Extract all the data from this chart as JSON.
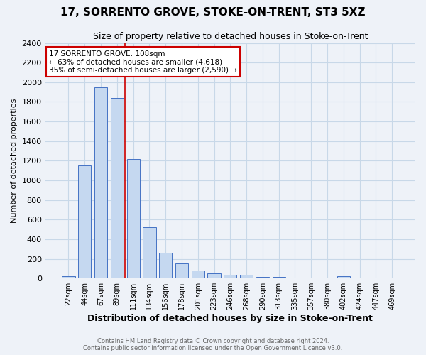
{
  "title": "17, SORRENTO GROVE, STOKE-ON-TRENT, ST3 5XZ",
  "subtitle": "Size of property relative to detached houses in Stoke-on-Trent",
  "xlabel": "Distribution of detached houses by size in Stoke-on-Trent",
  "ylabel": "Number of detached properties",
  "categories": [
    "22sqm",
    "44sqm",
    "67sqm",
    "89sqm",
    "111sqm",
    "134sqm",
    "156sqm",
    "178sqm",
    "201sqm",
    "223sqm",
    "246sqm",
    "268sqm",
    "290sqm",
    "313sqm",
    "335sqm",
    "357sqm",
    "380sqm",
    "402sqm",
    "424sqm",
    "447sqm",
    "469sqm"
  ],
  "values": [
    25,
    1155,
    1950,
    1840,
    1215,
    520,
    260,
    150,
    80,
    50,
    38,
    35,
    18,
    14,
    5,
    5,
    3,
    20,
    2,
    2,
    2
  ],
  "bar_color": "#c5d8f0",
  "bar_edge_color": "#4472c4",
  "vline_x": 3.5,
  "vline_color": "#cc0000",
  "annotation_text": "17 SORRENTO GROVE: 108sqm\n← 63% of detached houses are smaller (4,618)\n35% of semi-detached houses are larger (2,590) →",
  "annotation_box_color": "white",
  "annotation_box_edge_color": "#cc0000",
  "ylim": [
    0,
    2400
  ],
  "yticks": [
    0,
    200,
    400,
    600,
    800,
    1000,
    1200,
    1400,
    1600,
    1800,
    2000,
    2200,
    2400
  ],
  "grid_color": "#c8d8e8",
  "background_color": "#eef2f8",
  "footer_line1": "Contains HM Land Registry data © Crown copyright and database right 2024.",
  "footer_line2": "Contains public sector information licensed under the Open Government Licence v3.0."
}
